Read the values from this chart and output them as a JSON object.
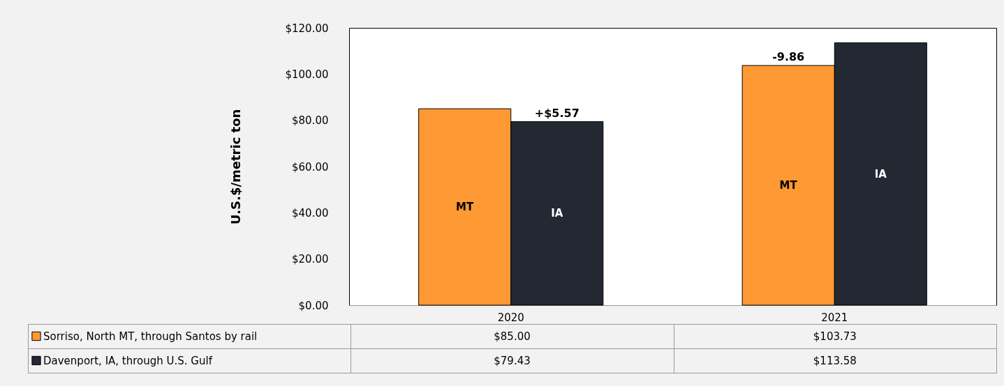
{
  "chart_data": {
    "type": "bar",
    "ylabel": "U.S.$/metric ton",
    "categories": [
      "2020",
      "2021"
    ],
    "series": [
      {
        "name": "Sorriso, North MT, through Santos by rail",
        "color": "#ff9933",
        "values": [
          85.0,
          103.73
        ],
        "value_labels": [
          "$85.00",
          "$103.73"
        ]
      },
      {
        "name": "Davenport, IA, through U.S. Gulf",
        "color": "#232833",
        "values": [
          79.43,
          113.58
        ],
        "value_labels": [
          "$79.43",
          "$113.58"
        ]
      }
    ],
    "ylim": [
      0,
      120
    ],
    "yticks": [
      {
        "value": 0,
        "label": "$0.00"
      },
      {
        "value": 20,
        "label": "$20.00"
      },
      {
        "value": 40,
        "label": "$40.00"
      },
      {
        "value": 60,
        "label": "$60.00"
      },
      {
        "value": 80,
        "label": "$80.00"
      },
      {
        "value": 100,
        "label": "$100.00"
      },
      {
        "value": 120,
        "label": "$120.00"
      }
    ],
    "grid": false,
    "legend": "bottom",
    "annotations": [
      "MT",
      "IA",
      "MT",
      "IA",
      {
        "text": "+$5.57",
        "x": "2020",
        "y": 79.43
      },
      {
        "text": "-9.86",
        "x": "2021",
        "y": 103.73
      }
    ]
  }
}
